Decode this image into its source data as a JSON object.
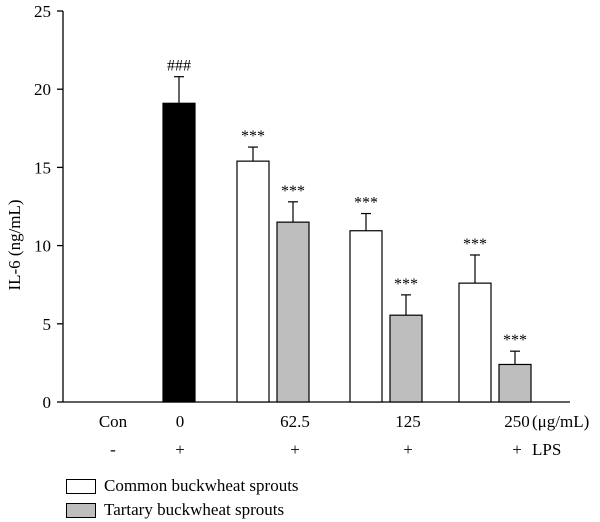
{
  "chart_data": {
    "type": "bar",
    "ylabel": "IL-6 (ng/mL)",
    "ylim": [
      0,
      25
    ],
    "yticks": [
      0,
      5,
      10,
      15,
      20,
      25
    ],
    "categories": [
      "Con",
      "0",
      "62.5",
      "125",
      "250"
    ],
    "x_unit": "(μg/mL)",
    "lps_label": "LPS",
    "lps_row": [
      "-",
      "+",
      "+",
      "+",
      "+"
    ],
    "groups": [
      {
        "category": "Con",
        "bars": []
      },
      {
        "category": "0",
        "bars": [
          {
            "series": "LPS",
            "value": 19.1,
            "error": 1.7,
            "label": "###"
          }
        ]
      },
      {
        "category": "62.5",
        "bars": [
          {
            "series": "Common buckwheat sprouts",
            "value": 15.4,
            "error": 0.9,
            "label": "***"
          },
          {
            "series": "Tartary buckwheat sprouts",
            "value": 11.5,
            "error": 1.3,
            "label": "***"
          }
        ]
      },
      {
        "category": "125",
        "bars": [
          {
            "series": "Common buckwheat sprouts",
            "value": 10.95,
            "error": 1.1,
            "label": "***"
          },
          {
            "series": "Tartary buckwheat sprouts",
            "value": 5.55,
            "error": 1.3,
            "label": "***"
          }
        ]
      },
      {
        "category": "250",
        "bars": [
          {
            "series": "Common buckwheat sprouts",
            "value": 7.6,
            "error": 1.8,
            "label": "***"
          },
          {
            "series": "Tartary buckwheat sprouts",
            "value": 2.4,
            "error": 0.85,
            "label": "***"
          }
        ]
      }
    ],
    "colors": {
      "LPS": "#000000",
      "Common buckwheat sprouts": "#ffffff",
      "Tartary buckwheat sprouts": "#bebebe"
    },
    "legend": [
      {
        "name": "Common buckwheat sprouts",
        "color": "#ffffff"
      },
      {
        "name": "Tartary buckwheat sprouts",
        "color": "#bebebe"
      }
    ],
    "legend_position": "bottom-left"
  }
}
